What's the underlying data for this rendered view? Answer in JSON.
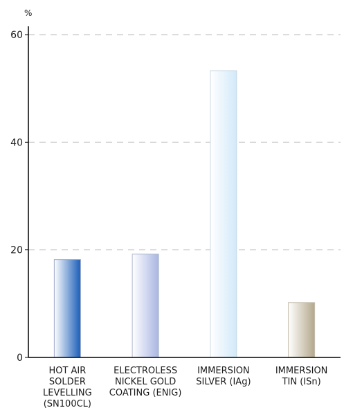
{
  "chart_data": {
    "type": "bar",
    "ylabel": "%",
    "ylim": [
      0,
      60
    ],
    "yticks": [
      0,
      20,
      40,
      60
    ],
    "grid": true,
    "categories": [
      "HOT AIR\nSOLDER\nLEVELLING\n(SN100CL)",
      "ELECTROLESS\nNICKEL GOLD\nCOATING (ENIG)",
      "IMMERSION\nSILVER (IAg)",
      "IMMERSION\nTIN (ISn)"
    ],
    "values": [
      18.2,
      19.2,
      53.3,
      10.2
    ],
    "bar_colors": [
      [
        "#ffffff",
        "#1a5db8"
      ],
      [
        "#ffffff",
        "#a9b6e2"
      ],
      [
        "#ffffff",
        "#d2e9f9"
      ],
      [
        "#ffffff",
        "#b4a78b"
      ]
    ],
    "bar_borders": [
      "#9aa8c8",
      "#b0b8cc",
      "#c8d8e4",
      "#c4bcae"
    ],
    "grid_color": "#c8c8c8",
    "axis_color": "#000000"
  }
}
